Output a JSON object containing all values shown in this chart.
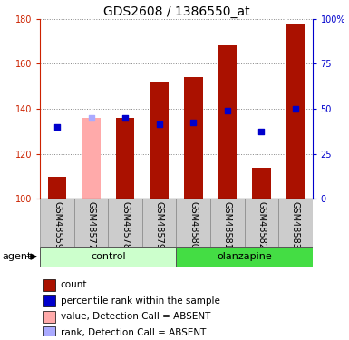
{
  "title": "GDS2608 / 1386550_at",
  "samples": [
    "GSM48559",
    "GSM48577",
    "GSM48578",
    "GSM48579",
    "GSM48580",
    "GSM48581",
    "GSM48582",
    "GSM48583"
  ],
  "bar_heights": [
    110,
    null,
    136,
    152,
    154,
    168,
    114,
    178
  ],
  "bar_absent_heights": [
    null,
    136,
    null,
    null,
    null,
    null,
    null,
    null
  ],
  "rank_dots": [
    132,
    null,
    136,
    133,
    134,
    139,
    130,
    140
  ],
  "rank_absent_dots": [
    null,
    136,
    null,
    null,
    null,
    null,
    null,
    null
  ],
  "bar_color": "#AA1100",
  "bar_absent_color": "#FFAAAA",
  "rank_color": "#0000CC",
  "rank_absent_color": "#AAAAFF",
  "ymin": 100,
  "ymax": 180,
  "yticks_left": [
    100,
    120,
    140,
    160,
    180
  ],
  "yticks_right_vals": [
    100,
    120,
    140,
    160,
    180
  ],
  "yticks_right_labels": [
    "0",
    "25",
    "50",
    "75",
    "100%"
  ],
  "ylabel_left_color": "#CC2200",
  "ylabel_right_color": "#0000CC",
  "control_color": "#CCFFCC",
  "olanzapine_color": "#44DD44",
  "agent_label": "agent",
  "bar_width": 0.55,
  "dot_size": 22,
  "title_fontsize": 10,
  "tick_fontsize": 7,
  "label_fontsize": 7,
  "legend_fontsize": 7.5,
  "group_fontsize": 8,
  "legend_items": [
    [
      "#AA1100",
      "count"
    ],
    [
      "#0000CC",
      "percentile rank within the sample"
    ],
    [
      "#FFAAAA",
      "value, Detection Call = ABSENT"
    ],
    [
      "#AAAAFF",
      "rank, Detection Call = ABSENT"
    ]
  ]
}
